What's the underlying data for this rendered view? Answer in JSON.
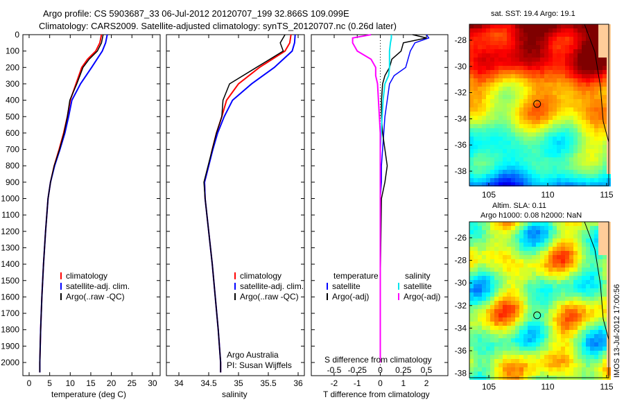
{
  "title": {
    "line1": "Argo profile: CS 5903687_33 06-Jul-2012 20120707_199 32.866S 109.099E",
    "line2": "Climatology: CARS2009. Satellite-adjusted climatology: synTS_20120707.nc (0.26d later)"
  },
  "colors": {
    "climatology": "#ff0000",
    "satellite": "#0000ff",
    "argo": "#000000",
    "cyan": "#00e5ee",
    "magenta": "#ff00ff"
  },
  "chart_data": [
    {
      "type": "line",
      "xlabel": "temperature (deg C)",
      "xticks": [
        "0",
        "5",
        "10",
        "15",
        "20",
        "25",
        "30"
      ],
      "xlim": [
        -2,
        31
      ],
      "ylim": [
        2060,
        0
      ],
      "yticks": [
        "0",
        "100",
        "200",
        "300",
        "400",
        "500",
        "600",
        "700",
        "800",
        "900",
        "1000",
        "1100",
        "1200",
        "1300",
        "1400",
        "1500",
        "1600",
        "1700",
        "1800",
        "1900",
        "2000"
      ],
      "legend": [
        "climatology",
        "satellite-adj. clim.",
        "Argo(..raw -QC)"
      ],
      "depth": [
        0,
        50,
        100,
        150,
        200,
        300,
        400,
        500,
        600,
        700,
        800,
        900,
        1000,
        1200,
        1400,
        1600,
        1800,
        2000,
        2060
      ],
      "series": [
        {
          "name": "climatology",
          "values": [
            17.6,
            17.2,
            16.2,
            14.2,
            12.8,
            11.4,
            10,
            9.3,
            8.4,
            7.3,
            6.1,
            5.2,
            4.6,
            4,
            3.5,
            3.1,
            2.8,
            2.6,
            2.6
          ]
        },
        {
          "name": "satellite-adj. clim.",
          "values": [
            19,
            18.6,
            17.8,
            16.5,
            15.2,
            12.5,
            10.4,
            9.6,
            8.7,
            7.5,
            6.2,
            5.2,
            4.6,
            4,
            3.5,
            3.1,
            2.8,
            2.6,
            2.6
          ]
        },
        {
          "name": "Argo(..raw -QC)",
          "values": [
            18,
            17.6,
            16.6,
            14.6,
            13.1,
            11.6,
            9.9,
            9.3,
            8.5,
            7.4,
            6.1,
            5.2,
            4.6,
            4,
            3.5,
            3.1,
            2.8,
            2.6,
            2.6
          ]
        }
      ]
    },
    {
      "type": "line",
      "xlabel": "salinity",
      "xticks": [
        "34",
        "34.5",
        "35",
        "35.5",
        "36"
      ],
      "xlim": [
        33.8,
        36.2
      ],
      "ylim": [
        2060,
        0
      ],
      "legend": [
        "climatology",
        "satellite-adj. clim.",
        "Argo(..raw -QC)"
      ],
      "annotation": [
        "Argo Australia",
        "PI: Susan Wijffels"
      ],
      "depth": [
        0,
        50,
        100,
        200,
        300,
        400,
        500,
        600,
        700,
        800,
        900,
        1000,
        1200,
        1400,
        1600,
        1800,
        2000,
        2060
      ],
      "series": [
        {
          "name": "climatology",
          "values": [
            35.88,
            35.86,
            35.78,
            35.35,
            35,
            34.8,
            34.72,
            34.63,
            34.56,
            34.5,
            34.43,
            34.44,
            34.5,
            34.56,
            34.61,
            34.66,
            34.7,
            34.7
          ]
        },
        {
          "name": "satellite-adj. clim.",
          "values": [
            35.95,
            35.94,
            35.9,
            35.6,
            35.22,
            34.9,
            34.76,
            34.65,
            34.57,
            34.5,
            34.43,
            34.44,
            34.5,
            34.56,
            34.61,
            34.66,
            34.7,
            34.7
          ]
        },
        {
          "name": "Argo(..raw -QC)",
          "values": [
            35.78,
            35.7,
            35.75,
            35.3,
            34.85,
            34.74,
            34.72,
            34.63,
            34.56,
            34.49,
            34.42,
            34.44,
            34.5,
            34.56,
            34.61,
            34.66,
            34.7,
            34.7
          ]
        }
      ]
    },
    {
      "type": "line",
      "xlabel": "T difference from climatology",
      "x2label": "S difference from climatology",
      "xticks": [
        "-2",
        "-1",
        "0",
        "1",
        "2"
      ],
      "x2ticks": [
        "-0.5",
        "-0.25",
        "0",
        "0.25",
        "0.5"
      ],
      "xlim": [
        -2.9,
        3
      ],
      "ylim": [
        2060,
        0
      ],
      "legend_t": [
        "temperature",
        "satellite",
        "Argo(-adj)"
      ],
      "legend_s": [
        "salinity",
        "satellite",
        "Argo(-adj)"
      ],
      "depth": [
        0,
        20,
        50,
        100,
        150,
        200,
        250,
        300,
        400,
        500,
        600,
        700,
        800,
        900,
        1000,
        1500,
        2000
      ],
      "series": [
        {
          "name": "T satellite",
          "values": [
            2,
            2.1,
            1.5,
            1.3,
            1.2,
            1.1,
            0.6,
            0.4,
            0.3,
            0.2,
            0.15,
            0.1,
            0.05,
            0.05,
            0,
            0,
            0
          ]
        },
        {
          "name": "T Argo(-adj)",
          "values": [
            1.4,
            2,
            1,
            0.9,
            0.5,
            0.4,
            0.2,
            0.1,
            0.05,
            0.05,
            0.1,
            0.2,
            0.3,
            0.2,
            0.05,
            0,
            0
          ]
        },
        {
          "name": "S satellite",
          "values": [
            0.12,
            0.12,
            0.11,
            0.1,
            0.1,
            0.1,
            0.09,
            0.05,
            0.03,
            0.02,
            0.01,
            0,
            0,
            0,
            0,
            0,
            0
          ]
        },
        {
          "name": "S Argo(-adj)",
          "values": [
            -0.1,
            -0.3,
            -0.3,
            -0.25,
            -0.1,
            -0.05,
            -0.05,
            -0.03,
            -0.02,
            -0.01,
            0,
            0,
            0,
            0,
            0,
            0,
            0
          ]
        }
      ]
    }
  ],
  "maps": {
    "sst_title": "sat. SST: 19.4 Argo: 19.1",
    "sla_title1": "Altim. SLA: 0.11",
    "sla_title2": "Argo h1000: 0.08 h2000: NaN",
    "sst_yticks": [
      "-28",
      "-30",
      "-32",
      "-34",
      "-36",
      "-38"
    ],
    "sla_yticks": [
      "-26",
      "-28",
      "-30",
      "-32",
      "-34",
      "-36",
      "-38"
    ],
    "xticks": [
      "105",
      "110",
      "115"
    ]
  },
  "footer": "IMOS 13-Jul-2012 17:00:56"
}
